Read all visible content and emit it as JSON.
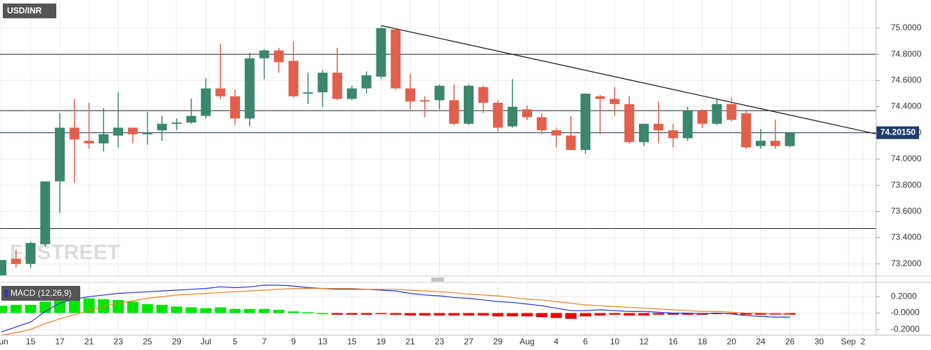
{
  "chart_data": [
    {
      "type": "candlestick",
      "title": "USD/INR",
      "categories": [
        "Jun",
        null,
        "15",
        null,
        "17",
        null,
        "21",
        null,
        "23",
        null,
        "25",
        null,
        "29",
        null,
        "Jul",
        null,
        "5",
        null,
        "7",
        null,
        "9",
        null,
        "13",
        null,
        "15",
        null,
        "19",
        null,
        "21",
        null,
        "23",
        null,
        "27",
        null,
        "29",
        null,
        "Aug",
        null,
        "4",
        null,
        "6",
        null,
        "10",
        null,
        "12",
        null,
        "16",
        null,
        "18",
        null,
        "20",
        null,
        "24",
        null,
        "26",
        null,
        "30",
        null,
        "Sep",
        "2"
      ],
      "open": [
        73.11,
        73.24,
        73.2,
        73.35,
        73.83,
        74.24,
        74.14,
        74.12,
        74.18,
        74.24,
        74.19,
        74.22,
        74.27,
        74.28,
        74.33,
        74.54,
        74.48,
        74.31,
        74.77,
        74.83,
        74.75,
        74.5,
        74.51,
        74.66,
        74.46,
        74.54,
        74.63,
        74.99,
        74.54,
        74.45,
        74.45,
        74.45,
        74.27,
        74.55,
        74.43,
        74.25,
        74.38,
        74.32,
        74.22,
        74.18,
        74.07,
        74.48,
        74.46,
        74.42,
        74.13,
        74.27,
        74.22,
        74.16,
        74.37,
        74.27,
        74.42,
        74.35,
        74.1,
        74.14,
        74.1,
        null,
        null,
        null,
        null,
        null
      ],
      "high": [
        73.23,
        73.31,
        73.37,
        73.83,
        74.35,
        74.46,
        74.43,
        74.39,
        74.51,
        74.24,
        74.36,
        74.33,
        74.31,
        74.46,
        74.62,
        74.88,
        74.53,
        74.81,
        74.84,
        74.85,
        74.9,
        74.66,
        74.68,
        74.85,
        74.56,
        74.67,
        75.01,
        75.0,
        74.65,
        74.48,
        74.57,
        74.57,
        74.57,
        74.56,
        74.45,
        74.61,
        74.41,
        74.35,
        74.24,
        74.33,
        74.5,
        74.49,
        74.55,
        74.48,
        74.27,
        74.44,
        74.27,
        74.4,
        74.38,
        74.46,
        74.47,
        74.37,
        74.23,
        74.3,
        74.2,
        null,
        null,
        null,
        null,
        null
      ],
      "low": [
        73.11,
        73.17,
        73.17,
        73.33,
        73.59,
        73.82,
        74.08,
        74.06,
        74.09,
        74.12,
        74.11,
        74.14,
        74.22,
        74.27,
        74.31,
        74.46,
        74.26,
        74.25,
        74.61,
        74.66,
        74.47,
        74.42,
        74.4,
        74.45,
        74.45,
        74.5,
        74.61,
        74.53,
        74.38,
        74.32,
        74.38,
        74.26,
        74.26,
        74.35,
        74.2,
        74.24,
        74.3,
        74.19,
        74.09,
        74.07,
        74.04,
        74.19,
        74.33,
        74.12,
        74.1,
        74.12,
        74.09,
        74.14,
        74.24,
        74.26,
        74.29,
        74.08,
        74.08,
        74.08,
        74.09,
        null,
        null,
        null,
        null,
        null
      ],
      "close": [
        73.23,
        73.2,
        73.36,
        73.83,
        74.24,
        74.15,
        74.12,
        74.19,
        74.24,
        74.19,
        74.2,
        74.27,
        74.28,
        74.33,
        74.54,
        74.48,
        74.31,
        74.77,
        74.83,
        74.74,
        74.48,
        74.51,
        74.66,
        74.46,
        74.54,
        74.64,
        75.0,
        74.54,
        74.44,
        74.44,
        74.56,
        74.27,
        74.56,
        74.43,
        74.24,
        74.4,
        74.32,
        74.22,
        74.18,
        74.07,
        74.5,
        74.46,
        74.42,
        74.13,
        74.27,
        74.22,
        74.16,
        74.37,
        74.27,
        74.42,
        74.3,
        74.09,
        74.14,
        74.1,
        74.2,
        null,
        null,
        null,
        null,
        null
      ],
      "up_color": "#3a876c",
      "down_color": "#e0604c",
      "ylim": [
        73.118,
        75.215
      ],
      "yticks": [
        {
          "value": 73.2,
          "label": "73.2000"
        },
        {
          "value": 73.4,
          "label": "73.4000"
        },
        {
          "value": 73.6,
          "label": "73.6000"
        },
        {
          "value": 73.8,
          "label": "73.8000"
        },
        {
          "value": 74.0,
          "label": "74.0000"
        },
        {
          "value": 74.2,
          "label": "74.2000"
        },
        {
          "value": 74.4,
          "label": "74.4000"
        },
        {
          "value": 74.6,
          "label": "74.6000"
        },
        {
          "value": 74.8,
          "label": "74.8000"
        },
        {
          "value": 75.0,
          "label": "75.0000"
        }
      ],
      "grid": true,
      "hlines": [
        74.8,
        74.37,
        73.47
      ],
      "last_price": {
        "value": 74.2015,
        "label": "74.20150"
      },
      "trendline": {
        "x": [
          26,
          60
        ],
        "y": [
          75.02,
          74.19
        ]
      },
      "watermark": "FXSTREET"
    },
    {
      "type": "macd",
      "legend": "MACD (12,26,9)",
      "ylim": [
        -0.27,
        0.357
      ],
      "yticks": [
        {
          "value": -0.2,
          "label": "-0.2000"
        },
        {
          "value": 0,
          "label": "-0.0000"
        },
        {
          "value": 0.2,
          "label": "0.2000"
        }
      ],
      "series": [
        {
          "type": "bar",
          "positive_color": "#00e600",
          "negative_color": "#ee0000",
          "values": [
            0.09,
            0.1,
            0.1,
            0.14,
            0.16,
            0.17,
            0.18,
            0.17,
            0.16,
            0.14,
            0.11,
            0.1,
            0.08,
            0.07,
            0.06,
            0.07,
            0.05,
            0.05,
            0.05,
            0.04,
            0.02,
            0.01,
            0.0,
            -0.02,
            -0.02,
            -0.02,
            -0.01,
            -0.02,
            -0.03,
            -0.03,
            -0.03,
            -0.03,
            -0.03,
            -0.03,
            -0.04,
            -0.04,
            -0.04,
            -0.05,
            -0.06,
            -0.07,
            -0.04,
            -0.03,
            -0.02,
            -0.03,
            -0.03,
            -0.02,
            -0.02,
            -0.02,
            -0.02,
            -0.01,
            -0.01,
            -0.02,
            -0.02,
            -0.02,
            -0.02,
            null,
            null,
            null,
            null,
            null
          ]
        },
        {
          "type": "line",
          "color": "#2233dd",
          "values": [
            -0.23,
            -0.17,
            -0.11,
            0.02,
            0.12,
            0.17,
            0.2,
            0.22,
            0.24,
            0.25,
            0.26,
            0.27,
            0.28,
            0.29,
            0.3,
            0.32,
            0.31,
            0.32,
            0.34,
            0.34,
            0.33,
            0.31,
            0.3,
            0.29,
            0.29,
            0.29,
            0.28,
            0.27,
            0.24,
            0.22,
            0.21,
            0.19,
            0.18,
            0.16,
            0.14,
            0.13,
            0.11,
            0.09,
            0.06,
            0.03,
            0.03,
            0.04,
            0.03,
            0.02,
            0.02,
            0.01,
            0.0,
            0.0,
            -0.01,
            0.0,
            -0.01,
            -0.03,
            -0.04,
            -0.05,
            -0.05,
            null,
            null,
            null,
            null,
            null
          ]
        },
        {
          "type": "line",
          "color": "#f07c1e",
          "values": [
            -0.27,
            -0.24,
            -0.2,
            -0.13,
            -0.07,
            -0.02,
            0.03,
            0.08,
            0.12,
            0.15,
            0.18,
            0.2,
            0.22,
            0.23,
            0.24,
            0.25,
            0.26,
            0.27,
            0.28,
            0.29,
            0.3,
            0.3,
            0.3,
            0.3,
            0.3,
            0.29,
            0.29,
            0.29,
            0.28,
            0.27,
            0.26,
            0.25,
            0.23,
            0.22,
            0.21,
            0.19,
            0.17,
            0.16,
            0.14,
            0.12,
            0.1,
            0.09,
            0.08,
            0.07,
            0.06,
            0.05,
            0.04,
            0.03,
            0.02,
            0.02,
            0.01,
            0.0,
            0.0,
            -0.01,
            -0.01,
            null,
            null,
            null,
            null,
            null
          ]
        }
      ]
    }
  ]
}
